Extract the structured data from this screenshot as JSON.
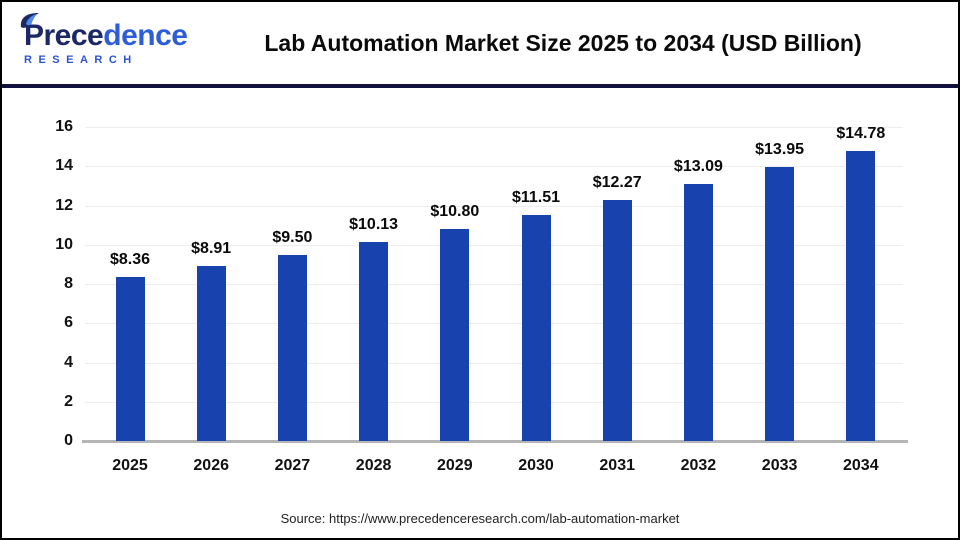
{
  "header": {
    "logo": {
      "word_part1": "Prece",
      "word_part2": "dence",
      "subtitle": "RESEARCH"
    },
    "title": "Lab Automation Market Size 2025 to 2034 (USD Billion)"
  },
  "chart_data": {
    "type": "bar",
    "title": "Lab Automation Market Size 2025 to 2034 (USD Billion)",
    "categories": [
      "2025",
      "2026",
      "2027",
      "2028",
      "2029",
      "2030",
      "2031",
      "2032",
      "2033",
      "2034"
    ],
    "values": [
      8.36,
      8.91,
      9.5,
      10.13,
      10.8,
      11.51,
      12.27,
      13.09,
      13.95,
      14.78
    ],
    "value_labels": [
      "$8.36",
      "$8.91",
      "$9.50",
      "$10.13",
      "$10.80",
      "$11.51",
      "$12.27",
      "$13.09",
      "$13.95",
      "$14.78"
    ],
    "xlabel": "",
    "ylabel": "",
    "ylim": [
      0,
      16
    ],
    "ytick_step": 2,
    "grid": true,
    "legend": "none"
  },
  "footer": {
    "source": "Source: https://www.precedenceresearch.com/lab-automation-market"
  },
  "colors": {
    "bar": "#1843af",
    "divider": "#10123d",
    "logo_navy": "#1c2768",
    "logo_blue": "#2e5ed6",
    "gridline": "#ededed",
    "baseline": "#b5b5b5",
    "title_text": "#0a0a0a"
  }
}
